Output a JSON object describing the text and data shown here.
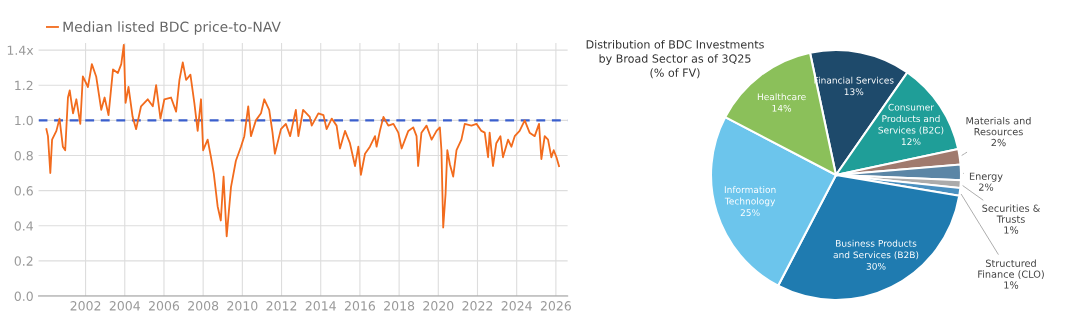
{
  "chart_data": [
    {
      "type": "line",
      "xlim": [
        1999.6,
        2026.6
      ],
      "ylim": [
        0,
        1.44
      ],
      "grid": true,
      "legend": "top left",
      "line_style": "solid",
      "marker": "none",
      "xticks": [
        2002,
        2004,
        2006,
        2008,
        2010,
        2012,
        2014,
        2016,
        2018,
        2020,
        2022,
        2024,
        2026
      ],
      "yticks": [
        {
          "value": 0,
          "label": "0.0"
        },
        0.2,
        0.4,
        0.6,
        0.8,
        {
          "value": 1,
          "label": "1.0"
        },
        1.2,
        {
          "value": 1.4,
          "label": "1.4x"
        }
      ],
      "ref_lines": [
        {
          "axis": "y",
          "value": 1.0,
          "color": "#3a5fcd",
          "line_style": "dashed"
        }
      ],
      "series": [
        {
          "name": "Median listed BDC price-to-NAV",
          "color": "#f26b1d",
          "x": [
            2000.0,
            2000.08,
            2000.2,
            2000.29,
            2000.51,
            2000.67,
            2000.84,
            2000.96,
            2001.1,
            2001.19,
            2001.36,
            2001.53,
            2001.73,
            2001.86,
            2002.12,
            2002.32,
            2002.54,
            2002.8,
            2002.97,
            2003.17,
            2003.4,
            2003.65,
            2003.82,
            2003.95,
            2004.04,
            2004.19,
            2004.4,
            2004.58,
            2004.83,
            2005.17,
            2005.43,
            2005.6,
            2005.82,
            2006.02,
            2006.36,
            2006.62,
            2006.79,
            2006.96,
            2007.13,
            2007.35,
            2007.55,
            2007.72,
            2007.89,
            2008.0,
            2008.23,
            2008.4,
            2008.54,
            2008.74,
            2008.9,
            2009.04,
            2009.2,
            2009.42,
            2009.67,
            2009.93,
            2010.1,
            2010.3,
            2010.44,
            2010.69,
            2010.95,
            2011.12,
            2011.37,
            2011.54,
            2011.66,
            2011.97,
            2012.22,
            2012.44,
            2012.73,
            2012.86,
            2013.1,
            2013.44,
            2013.54,
            2013.88,
            2014.14,
            2014.3,
            2014.56,
            2014.81,
            2014.98,
            2015.24,
            2015.49,
            2015.75,
            2015.92,
            2016.05,
            2016.26,
            2016.51,
            2016.77,
            2016.85,
            2017.02,
            2017.2,
            2017.45,
            2017.71,
            2017.96,
            2018.13,
            2018.47,
            2018.72,
            2018.89,
            2018.97,
            2019.14,
            2019.4,
            2019.66,
            2019.91,
            2020.08,
            2020.16,
            2020.25,
            2020.37,
            2020.46,
            2020.59,
            2020.76,
            2020.93,
            2021.18,
            2021.35,
            2021.69,
            2021.95,
            2022.2,
            2022.37,
            2022.54,
            2022.62,
            2022.79,
            2022.96,
            2023.17,
            2023.3,
            2023.56,
            2023.73,
            2023.9,
            2024.15,
            2024.41,
            2024.66,
            2024.92,
            2025.14,
            2025.26,
            2025.43,
            2025.6,
            2025.77,
            2025.89,
            2026.03,
            2026.16
          ],
          "values": [
            0.95,
            0.91,
            0.7,
            0.89,
            0.94,
            1.01,
            0.85,
            0.83,
            1.13,
            1.17,
            1.04,
            1.12,
            0.98,
            1.25,
            1.19,
            1.32,
            1.25,
            1.06,
            1.13,
            1.03,
            1.29,
            1.27,
            1.32,
            1.43,
            1.1,
            1.19,
            1.02,
            0.95,
            1.08,
            1.12,
            1.08,
            1.2,
            1.01,
            1.12,
            1.13,
            1.05,
            1.23,
            1.33,
            1.23,
            1.26,
            1.1,
            0.94,
            1.12,
            0.83,
            0.89,
            0.79,
            0.7,
            0.51,
            0.43,
            0.68,
            0.34,
            0.62,
            0.77,
            0.85,
            0.91,
            1.08,
            0.91,
            1.0,
            1.04,
            1.12,
            1.06,
            0.93,
            0.81,
            0.95,
            0.98,
            0.91,
            1.06,
            0.91,
            1.06,
            1.02,
            0.97,
            1.04,
            1.03,
            0.95,
            1.01,
            0.97,
            0.84,
            0.94,
            0.87,
            0.74,
            0.85,
            0.69,
            0.81,
            0.85,
            0.91,
            0.85,
            0.94,
            1.02,
            0.97,
            0.98,
            0.93,
            0.84,
            0.94,
            0.96,
            0.91,
            0.74,
            0.93,
            0.97,
            0.89,
            0.94,
            0.96,
            0.83,
            0.39,
            0.58,
            0.83,
            0.75,
            0.68,
            0.83,
            0.89,
            0.98,
            0.97,
            0.98,
            0.94,
            0.93,
            0.79,
            0.93,
            0.74,
            0.87,
            0.91,
            0.79,
            0.89,
            0.85,
            0.91,
            0.94,
            1.0,
            0.93,
            0.91,
            0.98,
            0.78,
            0.91,
            0.89,
            0.79,
            0.83,
            0.79,
            0.74
          ]
        }
      ]
    },
    {
      "type": "pie",
      "title": "Distribution of BDC Investments\nby Broad Sector as of 3Q25\n(% of FV)",
      "data_labels": true,
      "categories": [
        "Financial Services",
        "Consumer\nProducts and\nServices (B2C)",
        "Materials and\nResources",
        "Energy",
        "Securities &\nTrusts",
        "Structured\nFinance (CLO)",
        "Business Products\nand Services (B2B)",
        "Information\nTechnology",
        "Healthcare"
      ],
      "values": [
        13,
        12,
        2,
        2,
        1,
        1,
        30,
        25,
        14
      ],
      "value_labels": [
        "13%",
        "12%",
        "2%",
        "2%",
        "1%",
        "1%",
        "30%",
        "25%",
        "14%"
      ],
      "colors": [
        "#1e4a6b",
        "#1f9e98",
        "#a07a6e",
        "#5b86a6",
        "#ababab",
        "#4a90c0",
        "#1f7bb0",
        "#6cc5ec",
        "#8bc05a"
      ]
    }
  ]
}
